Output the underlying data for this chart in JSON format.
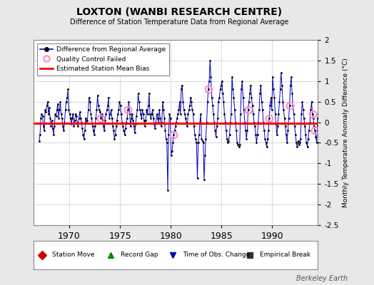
{
  "title": "LOXTON (WANBI RESEARCH CENTRE)",
  "subtitle": "Difference of Station Temperature Data from Regional Average",
  "ylabel": "Monthly Temperature Anomaly Difference (°C)",
  "xlabel_ticks": [
    1970,
    1975,
    1980,
    1985,
    1990
  ],
  "ylim": [
    -2.5,
    2.0
  ],
  "xlim": [
    1966.5,
    1994.5
  ],
  "bias_value": -0.02,
  "background_color": "#e8e8e8",
  "plot_bg_color": "#ffffff",
  "line_color": "#0000cc",
  "bias_color": "#ff0000",
  "qc_color": "#ff88cc",
  "marker_color": "#000000",
  "watermark": "Berkeley Earth",
  "time_series": {
    "years": [
      1967,
      1967,
      1967,
      1967,
      1967,
      1967,
      1967,
      1967,
      1967,
      1967,
      1967,
      1967,
      1968,
      1968,
      1968,
      1968,
      1968,
      1968,
      1968,
      1968,
      1968,
      1968,
      1968,
      1968,
      1969,
      1969,
      1969,
      1969,
      1969,
      1969,
      1969,
      1969,
      1969,
      1969,
      1969,
      1969,
      1970,
      1970,
      1970,
      1970,
      1970,
      1970,
      1970,
      1970,
      1970,
      1970,
      1970,
      1970,
      1971,
      1971,
      1971,
      1971,
      1971,
      1971,
      1971,
      1971,
      1971,
      1971,
      1971,
      1971,
      1972,
      1972,
      1972,
      1972,
      1972,
      1972,
      1972,
      1972,
      1972,
      1972,
      1972,
      1972,
      1973,
      1973,
      1973,
      1973,
      1973,
      1973,
      1973,
      1973,
      1973,
      1973,
      1973,
      1973,
      1974,
      1974,
      1974,
      1974,
      1974,
      1974,
      1974,
      1974,
      1974,
      1974,
      1974,
      1974,
      1975,
      1975,
      1975,
      1975,
      1975,
      1975,
      1975,
      1975,
      1975,
      1975,
      1975,
      1975,
      1976,
      1976,
      1976,
      1976,
      1976,
      1976,
      1976,
      1976,
      1976,
      1976,
      1976,
      1976,
      1977,
      1977,
      1977,
      1977,
      1977,
      1977,
      1977,
      1977,
      1977,
      1977,
      1977,
      1977,
      1978,
      1978,
      1978,
      1978,
      1978,
      1978,
      1978,
      1978,
      1978,
      1978,
      1978,
      1978,
      1979,
      1979,
      1979,
      1979,
      1979,
      1979,
      1979,
      1979,
      1979,
      1979,
      1979,
      1979,
      1980,
      1980,
      1980,
      1980,
      1980,
      1980,
      1980,
      1980,
      1980,
      1980,
      1980,
      1980,
      1981,
      1981,
      1981,
      1981,
      1981,
      1981,
      1981,
      1981,
      1981,
      1981,
      1981,
      1981,
      1982,
      1982,
      1982,
      1982,
      1982,
      1982,
      1982,
      1982,
      1982,
      1982,
      1982,
      1982,
      1983,
      1983,
      1983,
      1983,
      1983,
      1983,
      1983,
      1983,
      1983,
      1983,
      1983,
      1983,
      1984,
      1984,
      1984,
      1984,
      1984,
      1984,
      1984,
      1984,
      1984,
      1984,
      1984,
      1984,
      1985,
      1985,
      1985,
      1985,
      1985,
      1985,
      1985,
      1985,
      1985,
      1985,
      1985,
      1985,
      1986,
      1986,
      1986,
      1986,
      1986,
      1986,
      1986,
      1986,
      1986,
      1986,
      1986,
      1986,
      1987,
      1987,
      1987,
      1987,
      1987,
      1987,
      1987,
      1987,
      1987,
      1987,
      1987,
      1987,
      1988,
      1988,
      1988,
      1988,
      1988,
      1988,
      1988,
      1988,
      1988,
      1988,
      1988,
      1988,
      1989,
      1989,
      1989,
      1989,
      1989,
      1989,
      1989,
      1989,
      1989,
      1989,
      1989,
      1989,
      1990,
      1990,
      1990,
      1990,
      1990,
      1990,
      1990,
      1990,
      1990,
      1990,
      1990,
      1990,
      1991,
      1991,
      1991,
      1991,
      1991,
      1991,
      1991,
      1991,
      1991,
      1991,
      1991,
      1991,
      1992,
      1992,
      1992,
      1992,
      1992,
      1992,
      1992,
      1992,
      1992,
      1992,
      1992,
      1992,
      1993,
      1993,
      1993,
      1993,
      1993,
      1993,
      1993,
      1993,
      1993,
      1993,
      1993,
      1993,
      1994,
      1994,
      1994,
      1994,
      1994,
      1994,
      1994,
      1994,
      1994,
      1994,
      1994,
      1994
    ],
    "months": [
      1,
      2,
      3,
      4,
      5,
      6,
      7,
      8,
      9,
      10,
      11,
      12,
      1,
      2,
      3,
      4,
      5,
      6,
      7,
      8,
      9,
      10,
      11,
      12,
      1,
      2,
      3,
      4,
      5,
      6,
      7,
      8,
      9,
      10,
      11,
      12,
      1,
      2,
      3,
      4,
      5,
      6,
      7,
      8,
      9,
      10,
      11,
      12,
      1,
      2,
      3,
      4,
      5,
      6,
      7,
      8,
      9,
      10,
      11,
      12,
      1,
      2,
      3,
      4,
      5,
      6,
      7,
      8,
      9,
      10,
      11,
      12,
      1,
      2,
      3,
      4,
      5,
      6,
      7,
      8,
      9,
      10,
      11,
      12,
      1,
      2,
      3,
      4,
      5,
      6,
      7,
      8,
      9,
      10,
      11,
      12,
      1,
      2,
      3,
      4,
      5,
      6,
      7,
      8,
      9,
      10,
      11,
      12,
      1,
      2,
      3,
      4,
      5,
      6,
      7,
      8,
      9,
      10,
      11,
      12,
      1,
      2,
      3,
      4,
      5,
      6,
      7,
      8,
      9,
      10,
      11,
      12,
      1,
      2,
      3,
      4,
      5,
      6,
      7,
      8,
      9,
      10,
      11,
      12,
      1,
      2,
      3,
      4,
      5,
      6,
      7,
      8,
      9,
      10,
      11,
      12,
      1,
      2,
      3,
      4,
      5,
      6,
      7,
      8,
      9,
      10,
      11,
      12,
      1,
      2,
      3,
      4,
      5,
      6,
      7,
      8,
      9,
      10,
      11,
      12,
      1,
      2,
      3,
      4,
      5,
      6,
      7,
      8,
      9,
      10,
      11,
      12,
      1,
      2,
      3,
      4,
      5,
      6,
      7,
      8,
      9,
      10,
      11,
      12,
      1,
      2,
      3,
      4,
      5,
      6,
      7,
      8,
      9,
      10,
      11,
      12,
      1,
      2,
      3,
      4,
      5,
      6,
      7,
      8,
      9,
      10,
      11,
      12,
      1,
      2,
      3,
      4,
      5,
      6,
      7,
      8,
      9,
      10,
      11,
      12,
      1,
      2,
      3,
      4,
      5,
      6,
      7,
      8,
      9,
      10,
      11,
      12,
      1,
      2,
      3,
      4,
      5,
      6,
      7,
      8,
      9,
      10,
      11,
      12,
      1,
      2,
      3,
      4,
      5,
      6,
      7,
      8,
      9,
      10,
      11,
      12,
      1,
      2,
      3,
      4,
      5,
      6,
      7,
      8,
      9,
      10,
      11,
      12,
      1,
      2,
      3,
      4,
      5,
      6,
      7,
      8,
      9,
      10,
      11,
      12,
      1,
      2,
      3,
      4,
      5,
      6,
      7,
      8,
      9,
      10,
      11,
      12,
      1,
      2,
      3,
      4,
      5,
      6,
      7,
      8,
      9,
      10,
      11,
      12,
      1,
      2,
      3,
      4,
      5,
      6,
      7,
      8,
      9,
      10,
      11,
      12
    ],
    "values": [
      -0.45,
      -0.3,
      0.1,
      0.2,
      0.15,
      -0.1,
      -0.2,
      0.3,
      0.25,
      0.4,
      0.5,
      0.2,
      0.35,
      0.1,
      -0.1,
      0.05,
      -0.15,
      -0.3,
      -0.1,
      0.2,
      0.15,
      0.3,
      0.45,
      0.1,
      0.3,
      0.5,
      0.2,
      0.1,
      -0.1,
      -0.2,
      0.0,
      0.3,
      0.5,
      0.6,
      0.8,
      0.3,
      0.2,
      0.1,
      -0.05,
      0.1,
      0.2,
      -0.1,
      0.05,
      0.2,
      0.15,
      0.0,
      -0.1,
      0.1,
      0.25,
      0.1,
      0.0,
      -0.15,
      -0.3,
      -0.4,
      -0.2,
      0.1,
      0.0,
      0.05,
      0.3,
      0.6,
      0.5,
      0.2,
      0.1,
      -0.1,
      -0.2,
      -0.3,
      -0.1,
      0.1,
      0.3,
      0.65,
      0.4,
      0.3,
      0.25,
      0.1,
      0.2,
      0.05,
      -0.1,
      -0.2,
      0.05,
      0.2,
      0.3,
      0.4,
      0.6,
      0.1,
      0.2,
      0.3,
      0.1,
      -0.1,
      -0.2,
      -0.4,
      -0.3,
      -0.1,
      0.05,
      0.2,
      0.3,
      0.5,
      0.4,
      0.2,
      0.0,
      -0.1,
      -0.2,
      -0.3,
      -0.15,
      0.0,
      0.1,
      0.3,
      0.5,
      0.2,
      -0.1,
      0.1,
      0.2,
      0.05,
      -0.1,
      -0.25,
      -0.05,
      0.15,
      0.3,
      0.7,
      0.5,
      0.3,
      0.2,
      0.1,
      0.3,
      0.2,
      0.05,
      -0.1,
      0.05,
      0.3,
      0.2,
      0.4,
      0.7,
      0.2,
      0.1,
      0.2,
      0.3,
      0.1,
      -0.05,
      -0.15,
      0.0,
      0.2,
      0.1,
      0.0,
      0.3,
      0.1,
      -0.1,
      0.0,
      0.5,
      0.3,
      0.1,
      -0.2,
      -0.4,
      -0.5,
      -1.65,
      -0.3,
      0.2,
      0.1,
      -0.8,
      -0.7,
      -0.5,
      -0.3,
      -0.2,
      -0.1,
      0.0,
      0.1,
      0.2,
      0.3,
      0.5,
      0.2,
      0.8,
      0.9,
      0.5,
      0.3,
      0.2,
      0.1,
      0.0,
      -0.1,
      0.2,
      0.3,
      0.4,
      0.6,
      0.5,
      0.3,
      0.2,
      -0.1,
      -0.3,
      -0.4,
      -0.5,
      -1.35,
      -0.5,
      -0.3,
      0.0,
      0.2,
      -0.4,
      -0.45,
      -0.5,
      -1.4,
      -0.8,
      -0.4,
      0.0,
      0.5,
      0.8,
      1.0,
      1.5,
      1.1,
      0.6,
      0.4,
      0.2,
      0.0,
      -0.2,
      -0.35,
      -0.1,
      0.1,
      0.5,
      0.6,
      0.8,
      0.9,
      1.0,
      0.7,
      0.5,
      0.2,
      0.0,
      -0.2,
      -0.4,
      -0.5,
      -0.45,
      -0.3,
      0.0,
      0.2,
      1.1,
      0.8,
      0.6,
      0.3,
      0.0,
      -0.2,
      -0.5,
      -0.55,
      -0.6,
      -0.55,
      0.2,
      0.8,
      1.0,
      0.6,
      0.3,
      0.0,
      -0.2,
      -0.4,
      -0.2,
      0.3,
      0.5,
      0.7,
      0.9,
      0.6,
      0.4,
      0.2,
      0.0,
      -0.1,
      -0.3,
      -0.5,
      -0.3,
      0.0,
      0.3,
      0.7,
      0.9,
      0.5,
      0.3,
      0.0,
      -0.2,
      -0.4,
      -0.5,
      -0.6,
      -0.4,
      -0.2,
      0.1,
      0.4,
      0.6,
      0.3,
      1.1,
      0.8,
      0.6,
      0.2,
      -0.05,
      -0.3,
      -0.1,
      0.2,
      0.5,
      0.8,
      1.2,
      0.9,
      0.5,
      0.3,
      0.1,
      -0.1,
      -0.3,
      -0.5,
      -0.2,
      0.1,
      0.4,
      0.9,
      1.1,
      0.7,
      0.4,
      0.2,
      -0.1,
      -0.3,
      -0.5,
      -0.6,
      -0.45,
      -0.55,
      -0.5,
      -0.4,
      0.2,
      0.5,
      0.3,
      0.1,
      -0.1,
      -0.3,
      -0.5,
      -0.6,
      -0.4,
      -0.2,
      0.0,
      0.3,
      0.5,
      0.2,
      0.1,
      -0.1,
      -0.2,
      -0.35,
      -0.5,
      0.1,
      0.2,
      0.3,
      0.1,
      0.0,
      0.3,
      0.2
    ],
    "qc_failed_indices": [
      73,
      105,
      159,
      200,
      247,
      272,
      296,
      323,
      326
    ]
  }
}
